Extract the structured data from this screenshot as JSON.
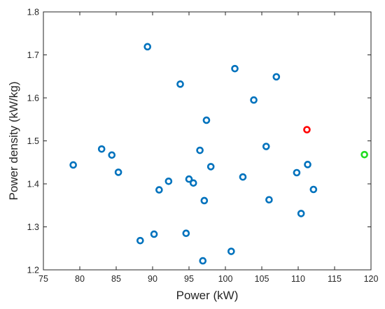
{
  "chart_data": {
    "type": "scatter",
    "title": "",
    "xlabel": "Power (kW)",
    "ylabel": "Power density (kW/kg)",
    "xlim": [
      75,
      120
    ],
    "ylim": [
      1.2,
      1.8
    ],
    "xticks": [
      75,
      80,
      85,
      90,
      95,
      100,
      105,
      110,
      115,
      120
    ],
    "yticks": [
      1.2,
      1.3,
      1.4,
      1.5,
      1.6,
      1.7,
      1.8
    ],
    "xtick_labels": [
      "75",
      "80",
      "85",
      "90",
      "95",
      "100",
      "105",
      "110",
      "115",
      "120"
    ],
    "ytick_labels": [
      "1.2",
      "1.3",
      "1.4",
      "1.5",
      "1.6",
      "1.7",
      "1.8"
    ],
    "grid": false,
    "marker": "open-circle",
    "series": [
      {
        "color": "#0072BD",
        "points": [
          [
            79.1,
            1.444
          ],
          [
            83.0,
            1.481
          ],
          [
            84.4,
            1.467
          ],
          [
            85.3,
            1.427
          ],
          [
            88.3,
            1.268
          ],
          [
            89.3,
            1.719
          ],
          [
            90.2,
            1.283
          ],
          [
            90.9,
            1.386
          ],
          [
            92.2,
            1.406
          ],
          [
            93.8,
            1.632
          ],
          [
            94.6,
            1.285
          ],
          [
            95.0,
            1.411
          ],
          [
            95.6,
            1.402
          ],
          [
            96.5,
            1.478
          ],
          [
            96.9,
            1.221
          ],
          [
            97.1,
            1.361
          ],
          [
            97.4,
            1.548
          ],
          [
            98.0,
            1.44
          ],
          [
            100.8,
            1.243
          ],
          [
            101.3,
            1.668
          ],
          [
            102.4,
            1.416
          ],
          [
            103.9,
            1.595
          ],
          [
            105.6,
            1.487
          ],
          [
            106.0,
            1.363
          ],
          [
            107.0,
            1.649
          ],
          [
            109.8,
            1.426
          ],
          [
            110.4,
            1.331
          ],
          [
            111.3,
            1.445
          ],
          [
            112.1,
            1.387
          ]
        ]
      },
      {
        "color": "#FF0000",
        "points": [
          [
            111.2,
            1.526
          ]
        ]
      },
      {
        "color": "#22DD22",
        "points": [
          [
            119.1,
            1.468
          ]
        ]
      }
    ]
  }
}
